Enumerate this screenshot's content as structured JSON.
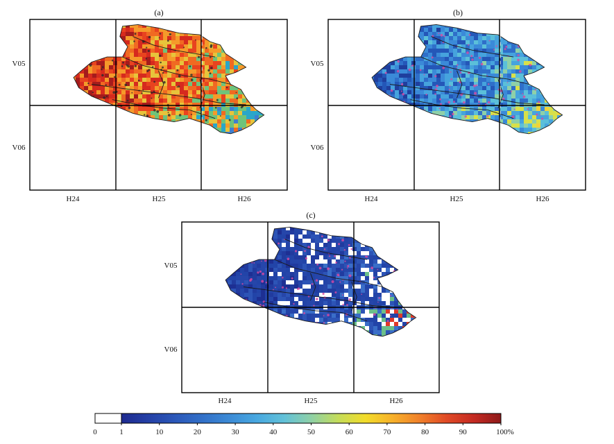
{
  "panels": [
    {
      "id": "a",
      "title": "(a)",
      "rows": [
        "V05",
        "V06"
      ],
      "cols": [
        "H24",
        "H25",
        "H26"
      ],
      "palette": [
        "#a51c1c",
        "#d62a1e",
        "#e8431f",
        "#f06a22",
        "#f59a2a",
        "#e7c43b",
        "#6fc37a",
        "#2aa6c9",
        "#3f7fd0"
      ],
      "speckle": "#2a2a2a"
    },
    {
      "id": "b",
      "title": "(b)",
      "rows": [
        "V05",
        "V06"
      ],
      "cols": [
        "H24",
        "H25",
        "H26"
      ],
      "palette": [
        "#1f3f9e",
        "#2457b8",
        "#2f6fc9",
        "#3b8ad8",
        "#46a3dd",
        "#5bbfd9",
        "#8ed0a8",
        "#d8e04a",
        "#f2d23a"
      ],
      "speckle": "#d94aa3"
    },
    {
      "id": "c",
      "title": "(c)",
      "rows": [
        "V05",
        "V06"
      ],
      "cols": [
        "H24",
        "H25",
        "H26"
      ],
      "palette": [
        "#1d2f93",
        "#213b9f",
        "#2646aa",
        "#2d54b6",
        "#2244a8",
        "#ffffff",
        "#3a6ec8",
        "#6bbf8a",
        "#e03a2a"
      ],
      "speckle": "#d94aa3"
    }
  ],
  "colorbar": {
    "tick_labels": [
      "0",
      "1",
      "10",
      "20",
      "30",
      "40",
      "50",
      "60",
      "70",
      "80",
      "90",
      "100%"
    ],
    "stops": [
      "#1e2a8f",
      "#2440a6",
      "#2b58b9",
      "#3270c8",
      "#3c8bd6",
      "#48a8e0",
      "#62c1d8",
      "#8ed0a6",
      "#c4dc5a",
      "#f2dc2a",
      "#f7b12a",
      "#f0802a",
      "#e04a26",
      "#c42a22",
      "#8e1a1a"
    ]
  }
}
